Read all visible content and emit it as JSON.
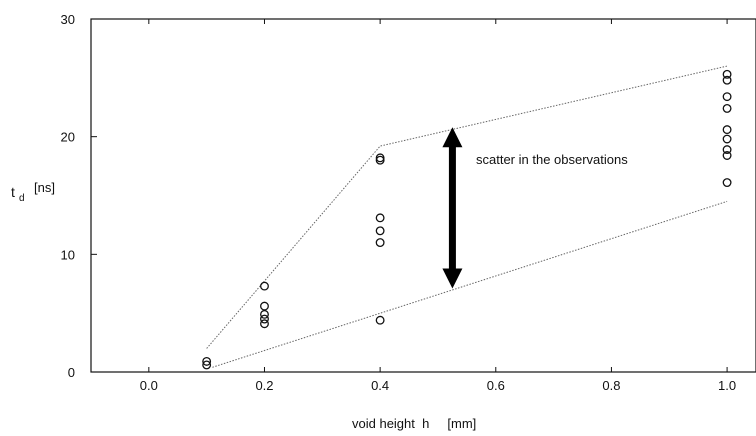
{
  "chart_data": {
    "type": "scatter",
    "title": "",
    "xlabel": "void height  h     [mm]",
    "ylabel_main": "t",
    "ylabel_sub": "d",
    "ylabel_unit": "[ns]",
    "xlim": [
      -0.1,
      1.05
    ],
    "ylim": [
      0,
      30
    ],
    "xticks": [
      {
        "value": 0.0,
        "label": "0.0"
      },
      {
        "value": 0.2,
        "label": "0.2"
      },
      {
        "value": 0.4,
        "label": "0.4"
      },
      {
        "value": 0.6,
        "label": "0.6"
      },
      {
        "value": 0.8,
        "label": "0.8"
      },
      {
        "value": 1.0,
        "label": "1.0"
      }
    ],
    "yticks": [
      {
        "value": 0,
        "label": "0"
      },
      {
        "value": 10,
        "label": "10"
      },
      {
        "value": 20,
        "label": "20"
      },
      {
        "value": 30,
        "label": "30"
      }
    ],
    "grid": false,
    "marker": "open-circle",
    "points": [
      {
        "x": 0.1,
        "y": 0.6
      },
      {
        "x": 0.1,
        "y": 0.9
      },
      {
        "x": 0.2,
        "y": 4.1
      },
      {
        "x": 0.2,
        "y": 4.5
      },
      {
        "x": 0.2,
        "y": 4.9
      },
      {
        "x": 0.2,
        "y": 5.6
      },
      {
        "x": 0.2,
        "y": 7.3
      },
      {
        "x": 0.4,
        "y": 4.4
      },
      {
        "x": 0.4,
        "y": 11.0
      },
      {
        "x": 0.4,
        "y": 12.0
      },
      {
        "x": 0.4,
        "y": 13.1
      },
      {
        "x": 0.4,
        "y": 18.0
      },
      {
        "x": 0.4,
        "y": 18.2
      },
      {
        "x": 1.0,
        "y": 16.1
      },
      {
        "x": 1.0,
        "y": 18.4
      },
      {
        "x": 1.0,
        "y": 18.9
      },
      {
        "x": 1.0,
        "y": 19.8
      },
      {
        "x": 1.0,
        "y": 20.6
      },
      {
        "x": 1.0,
        "y": 22.4
      },
      {
        "x": 1.0,
        "y": 23.4
      },
      {
        "x": 1.0,
        "y": 24.8
      },
      {
        "x": 1.0,
        "y": 25.3
      }
    ],
    "envelope_lines": [
      {
        "x": [
          0.1,
          0.4,
          1.0
        ],
        "y": [
          2.0,
          19.2,
          26.0
        ]
      },
      {
        "x": [
          0.11,
          1.0
        ],
        "y": [
          0.4,
          14.5
        ]
      }
    ],
    "annotation": {
      "text": "scatter in the observations",
      "arrow_x": 0.525,
      "arrow_y_top": 20.8,
      "arrow_y_bottom": 7.1
    }
  }
}
